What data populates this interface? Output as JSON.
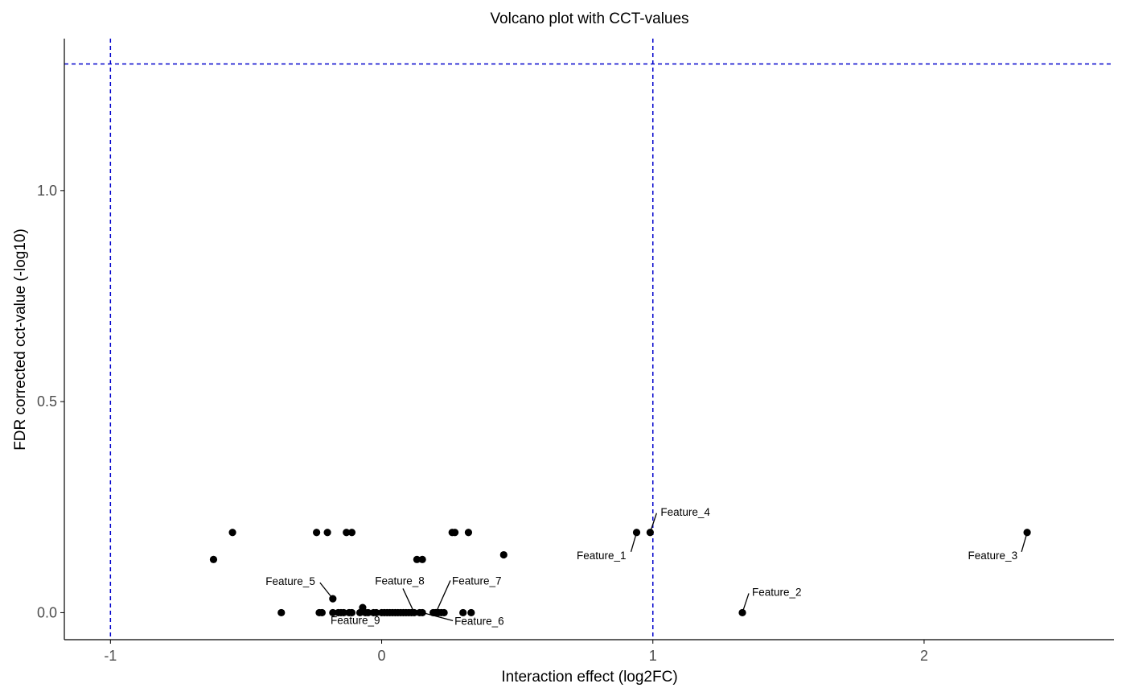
{
  "chart_data": {
    "type": "scatter",
    "title": "Volcano plot with CCT-values",
    "xlabel": "Interaction effect (log2FC)",
    "ylabel": "FDR corrected cct-value (-log10)",
    "xlim": [
      -1.17,
      2.7
    ],
    "ylim": [
      -0.064,
      1.36
    ],
    "x_ticks": [
      {
        "value": -1,
        "label": "-1"
      },
      {
        "value": 0,
        "label": "0"
      },
      {
        "value": 1,
        "label": "1"
      },
      {
        "value": 2,
        "label": "2"
      }
    ],
    "y_ticks": [
      {
        "value": 0,
        "label": "0.0"
      },
      {
        "value": 0.5,
        "label": "0.5"
      },
      {
        "value": 1,
        "label": "1.0"
      }
    ],
    "grid": false,
    "legend": "none",
    "reference_lines": {
      "vertical": [
        -1,
        1
      ],
      "horizontal": [
        1.3
      ],
      "color": "#0000cc",
      "style": "dashed"
    },
    "point_color": "#000000",
    "points": [
      {
        "x": -0.62,
        "y": 0.126
      },
      {
        "x": -0.55,
        "y": 0.19
      },
      {
        "x": -0.37,
        "y": 0.0
      },
      {
        "x": -0.24,
        "y": 0.19
      },
      {
        "x": -0.2,
        "y": 0.19
      },
      {
        "x": -0.13,
        "y": 0.19
      },
      {
        "x": -0.11,
        "y": 0.19
      },
      {
        "x": -0.23,
        "y": 0.0
      },
      {
        "x": -0.22,
        "y": 0.0
      },
      {
        "x": -0.18,
        "y": 0.0
      },
      {
        "x": -0.16,
        "y": 0.0
      },
      {
        "x": -0.14,
        "y": 0.0
      },
      {
        "x": -0.12,
        "y": 0.0
      },
      {
        "x": -0.11,
        "y": 0.0
      },
      {
        "x": -0.08,
        "y": 0.0
      },
      {
        "x": -0.06,
        "y": 0.0
      },
      {
        "x": -0.05,
        "y": 0.0
      },
      {
        "x": -0.03,
        "y": 0.0
      },
      {
        "x": -0.02,
        "y": 0.0
      },
      {
        "x": 0.0,
        "y": 0.0
      },
      {
        "x": 0.01,
        "y": 0.0
      },
      {
        "x": 0.02,
        "y": 0.0
      },
      {
        "x": 0.03,
        "y": 0.0
      },
      {
        "x": 0.04,
        "y": 0.0
      },
      {
        "x": 0.05,
        "y": 0.0
      },
      {
        "x": 0.06,
        "y": 0.0
      },
      {
        "x": 0.07,
        "y": 0.0
      },
      {
        "x": 0.08,
        "y": 0.0
      },
      {
        "x": 0.09,
        "y": 0.0
      },
      {
        "x": 0.1,
        "y": 0.0
      },
      {
        "x": 0.11,
        "y": 0.0
      },
      {
        "x": 0.14,
        "y": 0.0
      },
      {
        "x": 0.19,
        "y": 0.0
      },
      {
        "x": 0.2,
        "y": 0.0
      },
      {
        "x": 0.21,
        "y": 0.0
      },
      {
        "x": 0.22,
        "y": 0.0
      },
      {
        "x": 0.23,
        "y": 0.0
      },
      {
        "x": 0.3,
        "y": 0.0
      },
      {
        "x": 0.33,
        "y": 0.0
      },
      {
        "x": -0.07,
        "y": 0.012
      },
      {
        "x": 0.13,
        "y": 0.126
      },
      {
        "x": 0.15,
        "y": 0.126
      },
      {
        "x": 0.26,
        "y": 0.19
      },
      {
        "x": 0.27,
        "y": 0.19
      },
      {
        "x": 0.32,
        "y": 0.19
      },
      {
        "x": 0.45,
        "y": 0.137
      },
      {
        "x": -0.18,
        "y": 0.033,
        "label": "Feature_5"
      },
      {
        "x": -0.15,
        "y": 0.0,
        "label": "Feature_9"
      },
      {
        "x": 0.12,
        "y": 0.0,
        "label": "Feature_8"
      },
      {
        "x": 0.2,
        "y": 0.0,
        "label": "Feature_7"
      },
      {
        "x": 0.15,
        "y": 0.0,
        "label": "Feature_6"
      },
      {
        "x": 0.94,
        "y": 0.19,
        "label": "Feature_1"
      },
      {
        "x": 0.99,
        "y": 0.19,
        "label": "Feature_4"
      },
      {
        "x": 1.33,
        "y": 0.0,
        "label": "Feature_2"
      },
      {
        "x": 2.38,
        "y": 0.19,
        "label": "Feature_3"
      }
    ]
  }
}
